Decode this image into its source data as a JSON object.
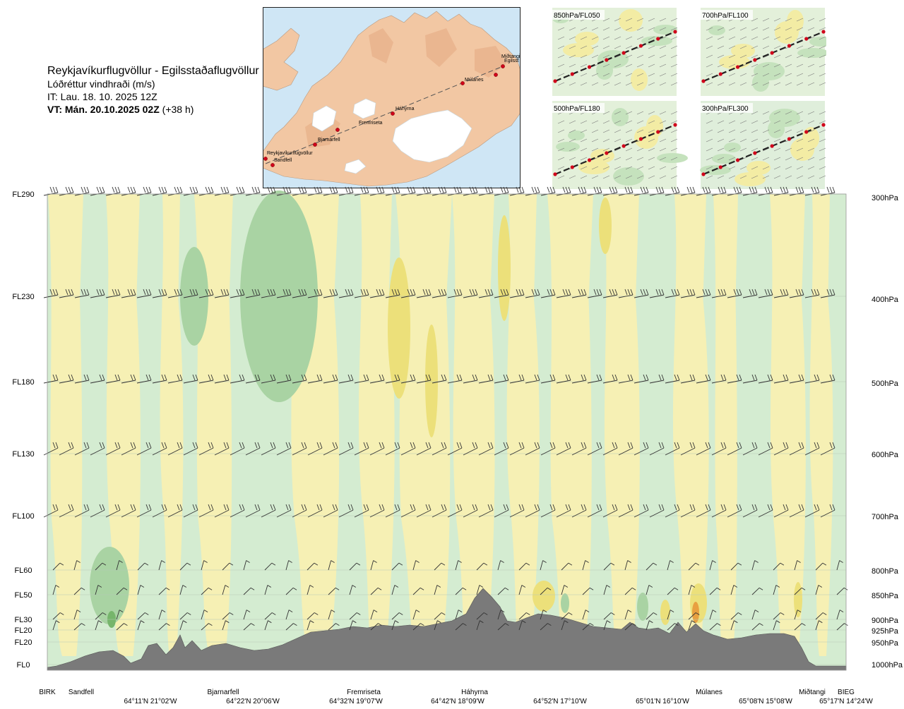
{
  "header": {
    "title": "Reykjavíkurflugvöllur - Egilsstaðaflugvöllur",
    "variable": "Lóðréttur vindhraði (m/s)",
    "issue_time": "IT: Lau. 18. 10. 2025 12Z",
    "valid_time_label": "VT: Mán. 20.10.2025 02Z",
    "lead_time": "(+38 h)"
  },
  "map": {
    "places": [
      "Reykjavíkurflugvöllur",
      "Sandfell",
      "Bjarnarfell",
      "Fremriseta",
      "Háhyrna",
      "Múlanes",
      "Miðtangi",
      "Egilsst"
    ]
  },
  "mini_maps": [
    {
      "label": "850hPa/FL050"
    },
    {
      "label": "700hPa/FL100"
    },
    {
      "label": "500hPa/FL180"
    },
    {
      "label": "300hPa/FL300"
    }
  ],
  "colors": {
    "terrain": "#7a7a7a",
    "green_light": "#d4ecd1",
    "green_mid": "#a9d3a3",
    "green_dark": "#76b56b",
    "yellow_light": "#f6f0b4",
    "yellow_mid": "#ece07a",
    "yellow_dark": "#e0d030",
    "orange": "#e8a040",
    "map_land": "#f2c7a3",
    "map_sea": "#cfe6f5"
  },
  "chart_data": {
    "type": "heatmap",
    "title": "Reykjavíkurflugvöllur - Egilsstaðaflugvöllur",
    "variable": "Lóðréttur vindhraði (m/s)",
    "left_axis_labels": [
      "FL290",
      "FL230",
      "FL180",
      "FL130",
      "FL100",
      "FL60",
      "FL50",
      "FL30",
      "FL20",
      "FL20",
      "FL0"
    ],
    "right_axis_labels": [
      "300hPa",
      "400hPa",
      "500hPa",
      "600hPa",
      "700hPa",
      "800hPa",
      "850hPa",
      "900hPa",
      "925hPa",
      "950hPa",
      "1000hPa"
    ],
    "pressure_levels_hPa": [
      300,
      400,
      500,
      600,
      700,
      800,
      850,
      900,
      925,
      950,
      1000
    ],
    "waypoints": [
      "BIRK",
      "Sandfell",
      "Bjarnarfell",
      "Fremriseta",
      "Háhyrna",
      "Múlanes",
      "Miðtangi",
      "BIEG"
    ],
    "coordinates": [
      "64°11'N 21°02'W",
      "64°22'N 20°06'W",
      "64°32'N 19°07'W",
      "64°42'N 18°09'W",
      "64°52'N 17°10'W",
      "65°01'N 16°10'W",
      "65°08'N 15°08'W",
      "65°17'N 14°24'W"
    ],
    "grid": true
  }
}
